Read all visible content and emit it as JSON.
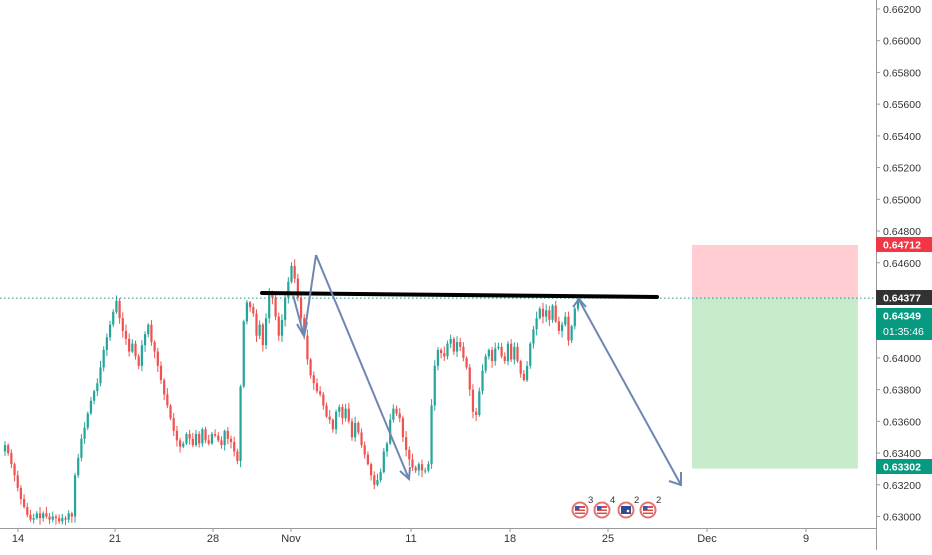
{
  "chart_data": {
    "type": "candlestick",
    "title": "",
    "xlabel": "",
    "ylabel": "",
    "ylim": [
      0.6295,
      0.6625
    ],
    "y_ticks": [
      "0.66200",
      "0.66000",
      "0.65800",
      "0.65600",
      "0.65400",
      "0.65200",
      "0.65000",
      "0.64800",
      "0.64600",
      "0.64400",
      "0.64200",
      "0.64000",
      "0.63800",
      "0.63600",
      "0.63400",
      "0.63200",
      "0.63000"
    ],
    "x_ticks": [
      "14",
      "21",
      "28",
      "Nov",
      "11",
      "18",
      "25",
      "Dec",
      "9"
    ],
    "grid": false,
    "colors": {
      "up": "#26a69a",
      "down": "#ef5350",
      "arrow": "#6f86b3",
      "profit_zone": "#c8ebcb",
      "loss_zone": "#ffcdd2"
    },
    "series": [
      {
        "name": "",
        "values": [
          0.6345,
          0.634,
          0.6333,
          0.6326,
          0.6318,
          0.6311,
          0.6306,
          0.6301,
          0.6298,
          0.6299,
          0.6302,
          0.6299,
          0.6302,
          0.63,
          0.6298,
          0.63,
          0.6299,
          0.6297,
          0.6299,
          0.6298,
          0.6302,
          0.63,
          0.6326,
          0.6337,
          0.6349,
          0.6356,
          0.6365,
          0.6373,
          0.6379,
          0.6384,
          0.6394,
          0.6405,
          0.6413,
          0.6421,
          0.6429,
          0.6436,
          0.6425,
          0.6417,
          0.6412,
          0.6404,
          0.6409,
          0.6401,
          0.6395,
          0.6408,
          0.6415,
          0.6421,
          0.641,
          0.6404,
          0.6395,
          0.6386,
          0.6377,
          0.637,
          0.6362,
          0.6354,
          0.6348,
          0.6344,
          0.6346,
          0.6352,
          0.6349,
          0.6345,
          0.6352,
          0.6346,
          0.6355,
          0.6348,
          0.6346,
          0.6352,
          0.6351,
          0.6348,
          0.6345,
          0.6354,
          0.6349,
          0.6347,
          0.6341,
          0.6335,
          0.6382,
          0.6423,
          0.6435,
          0.6432,
          0.6428,
          0.6414,
          0.6421,
          0.6408,
          0.6425,
          0.644,
          0.6438,
          0.6426,
          0.6414,
          0.6424,
          0.6438,
          0.6448,
          0.6458,
          0.645,
          0.6438,
          0.6425,
          0.6414,
          0.6399,
          0.6389,
          0.6384,
          0.6379,
          0.6377,
          0.637,
          0.6363,
          0.6361,
          0.6355,
          0.6366,
          0.6369,
          0.6362,
          0.6368,
          0.636,
          0.635,
          0.6359,
          0.6353,
          0.6345,
          0.6339,
          0.6333,
          0.6326,
          0.632,
          0.6323,
          0.6328,
          0.6341,
          0.6346,
          0.6361,
          0.6368,
          0.6365,
          0.6362,
          0.635,
          0.6342,
          0.6336,
          0.6331,
          0.6329,
          0.6333,
          0.6329,
          0.6329,
          0.6333,
          0.637,
          0.6395,
          0.6405,
          0.6403,
          0.6401,
          0.6409,
          0.6412,
          0.6404,
          0.641,
          0.6407,
          0.64,
          0.6394,
          0.638,
          0.6366,
          0.6364,
          0.6379,
          0.6392,
          0.6401,
          0.6405,
          0.6398,
          0.6406,
          0.6407,
          0.6401,
          0.6398,
          0.6409,
          0.6399,
          0.6407,
          0.6398,
          0.639,
          0.6386,
          0.6395,
          0.6409,
          0.6418,
          0.6425,
          0.6431,
          0.6426,
          0.643,
          0.6424,
          0.6433,
          0.6423,
          0.6417,
          0.6421,
          0.6426,
          0.6411,
          0.642,
          0.6431,
          0.6437
        ]
      }
    ],
    "annotations": {
      "neckline": {
        "x_start": 0.6436,
        "label": ""
      },
      "position": {
        "entry": 0.64377,
        "stop": 0.64712,
        "target": 0.63302
      },
      "arrows": "zigzag"
    },
    "price_labels": [
      {
        "value": "0.64712",
        "time": "",
        "color": "#f23645"
      },
      {
        "value": "0.64377",
        "time": "",
        "color": "#323232"
      },
      {
        "value": "0.64349",
        "time": "01:35:46",
        "color": "#089981"
      },
      {
        "value": "0.63302",
        "time": "",
        "color": "#089981"
      }
    ],
    "events": [
      {
        "flag": "us",
        "count": "3"
      },
      {
        "flag": "us",
        "count": "4"
      },
      {
        "flag": "au",
        "count": "2"
      },
      {
        "flag": "us",
        "count": "2"
      }
    ]
  }
}
